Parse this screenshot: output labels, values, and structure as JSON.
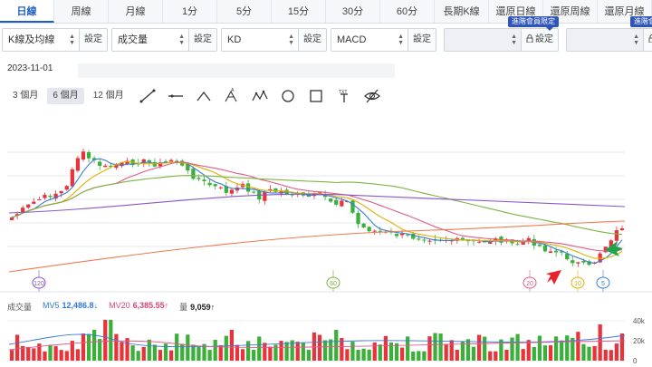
{
  "tabs": [
    {
      "label": "日線",
      "active": true
    },
    {
      "label": "周線"
    },
    {
      "label": "月線"
    },
    {
      "label": "1分"
    },
    {
      "label": "5分"
    },
    {
      "label": "15分"
    },
    {
      "label": "30分"
    },
    {
      "label": "60分"
    },
    {
      "label": "長期K線"
    },
    {
      "label": "還原日線"
    },
    {
      "label": "還原周線"
    },
    {
      "label": "還原月線"
    }
  ],
  "selectors": [
    {
      "value": "K線及均線",
      "button": "設定"
    },
    {
      "value": "成交量",
      "button": "設定"
    },
    {
      "value": "KD",
      "button": "設定"
    },
    {
      "value": "MACD",
      "button": "設定"
    },
    {
      "value": "",
      "button": "設定",
      "locked": true,
      "badge": "進階會員限定"
    },
    {
      "value": "",
      "button": "設定",
      "locked": true,
      "badge": "進階會員限定"
    }
  ],
  "date": "2023-11-01",
  "ranges": [
    "3 個月",
    "6 個月",
    "12 個月"
  ],
  "active_range": "6 個月",
  "draw_tools": [
    "line-tool-icon",
    "horizontal-line-tool-icon",
    "angle-tool-icon",
    "fibonacci-tool-icon",
    "wave-tool-icon",
    "circle-tool-icon",
    "rectangle-tool-icon",
    "text-tool-icon",
    "hide-drawings-icon"
  ],
  "ma_markers": [
    {
      "label": "120",
      "color": "#8a56c8"
    },
    {
      "label": "60",
      "color": "#7cb342"
    },
    {
      "label": "20",
      "color": "#e05a8a"
    },
    {
      "label": "10",
      "color": "#e0b000"
    },
    {
      "label": "5",
      "color": "#3a7bd5"
    }
  ],
  "volume_legend": {
    "title": "成交量",
    "mv5_label": "MV5",
    "mv5_value": "12,486.8↓",
    "mv20_label": "MV20",
    "mv20_value": "6,385.55↑",
    "vol_label": "量",
    "vol_value": "9,059↑"
  },
  "volume_axis": [
    "40k",
    "20k",
    "0"
  ],
  "colors": {
    "up": "#e8333a",
    "down": "#3ab03a",
    "ma5": "#3a7bd5",
    "ma10": "#e0b000",
    "ma20": "#e05a8a",
    "ma60": "#7cb342",
    "ma120": "#8a56c8",
    "ma240": "#f07a50"
  }
}
